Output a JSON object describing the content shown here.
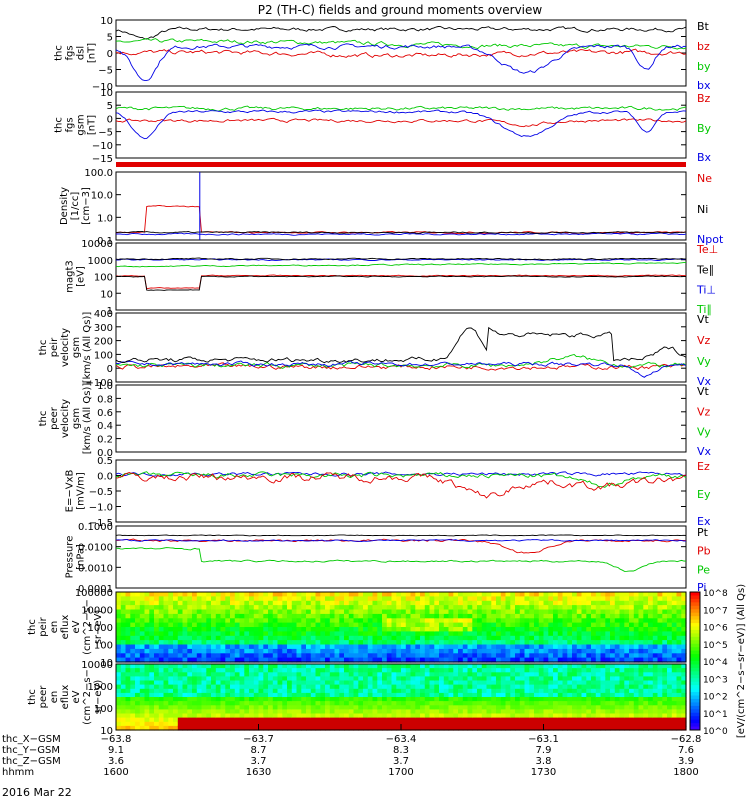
{
  "title": "P2 (TH-C) fields and ground moments overview",
  "date_label": "2016 Mar 22",
  "colors": {
    "black": "#000000",
    "red": "#e00000",
    "green": "#00c800",
    "blue": "#0000e6"
  },
  "chart_data": {
    "type": "line",
    "panels": [
      {
        "id": "fgs_dsl",
        "ylabel": [
          "thc",
          "fgs",
          "dsl",
          "[nT]"
        ],
        "yticks": [
          "10",
          "5",
          "0",
          "−5",
          "−10"
        ],
        "ylim": [
          -10,
          10
        ],
        "legend": [
          {
            "t": "Bt",
            "c": "black"
          },
          {
            "t": "bz",
            "c": "red"
          },
          {
            "t": "by",
            "c": "green"
          },
          {
            "t": "bx",
            "c": "blue"
          }
        ]
      },
      {
        "id": "fgs_gsm",
        "ylabel": [
          "thc",
          "fgs",
          "gsm",
          "[nT]"
        ],
        "yticks": [
          "10",
          "5",
          "0",
          "−5",
          "−10",
          "−15"
        ],
        "ylim": [
          -18,
          12
        ],
        "legend": [
          {
            "t": "Bz",
            "c": "red"
          },
          {
            "t": "By",
            "c": "green"
          },
          {
            "t": "Bx",
            "c": "blue"
          }
        ]
      },
      {
        "id": "density",
        "ylabel": [
          "Density",
          "[1/cc]",
          "[cm−3]"
        ],
        "yticks": [
          "100.0",
          "10.0",
          "1.0",
          "0.1"
        ],
        "log": true,
        "legend": [
          {
            "t": "Ne",
            "c": "red"
          },
          {
            "t": "Ni",
            "c": "black"
          },
          {
            "t": "Npot",
            "c": "blue"
          }
        ]
      },
      {
        "id": "temp",
        "ylabel": [
          "magt3",
          "[eV]"
        ],
        "yticks": [
          "10000",
          "1000",
          "100",
          "10",
          "1"
        ],
        "log": true,
        "legend": [
          {
            "t": "Te⊥",
            "c": "red"
          },
          {
            "t": "Te∥",
            "c": "black"
          },
          {
            "t": "Ti⊥",
            "c": "blue"
          },
          {
            "t": "Ti∥",
            "c": "green"
          }
        ]
      },
      {
        "id": "ion_vel",
        "ylabel": [
          "thc",
          "peir",
          "velocity",
          "gsm",
          "[km/s (All Qs)]"
        ],
        "yticks": [
          "400",
          "300",
          "200",
          "100",
          "0",
          "−100"
        ],
        "ylim": [
          -100,
          400
        ],
        "legend": [
          {
            "t": "Vt",
            "c": "black"
          },
          {
            "t": "Vz",
            "c": "red"
          },
          {
            "t": "Vy",
            "c": "green"
          },
          {
            "t": "Vx",
            "c": "blue"
          }
        ]
      },
      {
        "id": "ele_vel",
        "ylabel": [
          "thc",
          "peer",
          "velocity",
          "gsm",
          "[km/s (All Qs)]"
        ],
        "yticks": [
          "1.0",
          "0.8",
          "0.6",
          "0.4",
          "0.2",
          "0.0"
        ],
        "ylim": [
          0,
          1
        ],
        "legend": [
          {
            "t": "Vt",
            "c": "black"
          },
          {
            "t": "Vz",
            "c": "red"
          },
          {
            "t": "Vy",
            "c": "green"
          },
          {
            "t": "Vx",
            "c": "blue"
          }
        ]
      },
      {
        "id": "efield",
        "ylabel": [
          "E=−VxB",
          "[mV/m]"
        ],
        "yticks": [
          "0.5",
          "0.0",
          "−0.5",
          "−1.0",
          "−1.5"
        ],
        "ylim": [
          -1.5,
          0.5
        ],
        "legend": [
          {
            "t": "Ez",
            "c": "red"
          },
          {
            "t": "Ey",
            "c": "green"
          },
          {
            "t": "Ex",
            "c": "blue"
          }
        ]
      },
      {
        "id": "pressure",
        "ylabel": [
          "Pressure",
          "[nPa]"
        ],
        "yticks": [
          "0.1000",
          "0.0100",
          "0.0010",
          "0.0001"
        ],
        "log": true,
        "legend": [
          {
            "t": "Pt",
            "c": "black"
          },
          {
            "t": "Pb",
            "c": "red"
          },
          {
            "t": "Pe",
            "c": "green"
          },
          {
            "t": "Pi",
            "c": "blue"
          }
        ]
      },
      {
        "id": "ion_spec",
        "ylabel": [
          "thc",
          "peir",
          "en",
          "eflux",
          "eV",
          "(cm^2−s−",
          "sr−eV)"
        ],
        "yticks": [
          "100000",
          "10000",
          "1000",
          "100",
          "10"
        ],
        "log": true
      },
      {
        "id": "ele_spec",
        "ylabel": [
          "thc",
          "peer",
          "en",
          "eflux",
          "eV",
          "(cm^2−s−",
          "sr−eV)"
        ],
        "yticks": [
          "10000",
          "1000",
          "100",
          "10"
        ],
        "log": true
      }
    ],
    "colorbar": {
      "label": "[eV/(cm^2−s−sr−eV)] (All Qs)",
      "ticks": [
        "10^8",
        "10^7",
        "10^6",
        "10^5",
        "10^4",
        "10^3",
        "10^2",
        "10^1",
        "10^0"
      ]
    },
    "x_rows": [
      {
        "label": "thc_X−GSM",
        "values": [
          "−63.8",
          "−63.7",
          "−63.4",
          "−63.1",
          "−62.8"
        ]
      },
      {
        "label": "thc_Y−GSM",
        "values": [
          "9.1",
          "8.7",
          "8.3",
          "7.9",
          "7.6"
        ]
      },
      {
        "label": "thc_Z−GSM",
        "values": [
          "3.6",
          "3.7",
          "3.7",
          "3.8",
          "3.9"
        ]
      },
      {
        "label": "hhmm",
        "values": [
          "1600",
          "1630",
          "1700",
          "1730",
          "1800"
        ]
      }
    ]
  }
}
